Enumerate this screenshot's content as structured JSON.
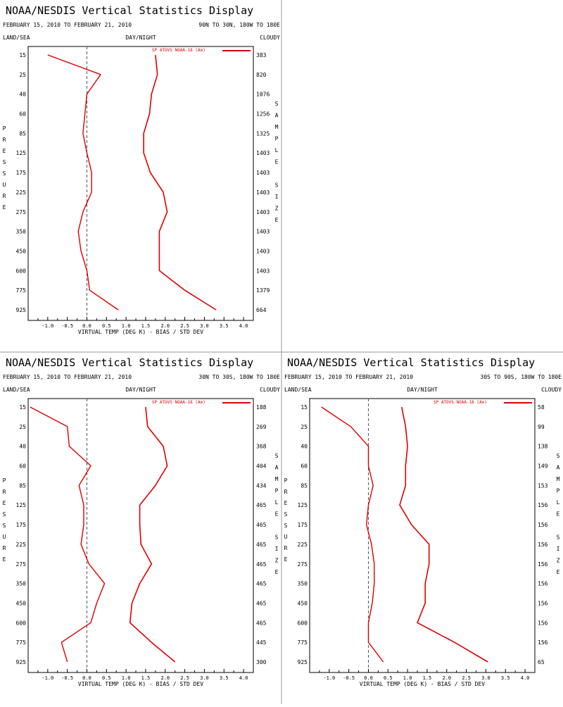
{
  "colors": {
    "series": "#dd0000",
    "frame": "#000000",
    "divider": "#999999",
    "zero_line": "#555555"
  },
  "chart_data": [
    {
      "type": "line",
      "title": "NOAA/NESDIS Vertical Statistics Display",
      "date_range": "FEBRUARY 15, 2010 TO FEBRUARY 21, 2010",
      "region": "90N TO 30N, 180W TO 180E",
      "left_header": "LAND/SEA",
      "center_header": "DAY/NIGHT",
      "right_header": "CLOUDY",
      "legend": "SP ATOVS NOAA-18 (A⊕)",
      "xlabel": "VIRTUAL TEMP (DEG K) - BIAS / STD DEV",
      "ylabel": "PRESSURE",
      "right_axis_label": "SAMPLE SIZE",
      "xlim": [
        -1.5,
        4.25
      ],
      "x_ticks": [
        "-1.0",
        "-0.5",
        "0.0",
        "0.5",
        "1.0",
        "1.5",
        "2.0",
        "2.5",
        "3.0",
        "3.5",
        "4.0"
      ],
      "pressure_levels": [
        "15",
        "25",
        "40",
        "60",
        "85",
        "125",
        "175",
        "225",
        "275",
        "350",
        "450",
        "600",
        "775",
        "925"
      ],
      "sample_size": [
        "383",
        "820",
        "1076",
        "1256",
        "1325",
        "1403",
        "1403",
        "1403",
        "1403",
        "1403",
        "1403",
        "1403",
        "1379",
        "664"
      ],
      "series": [
        {
          "role": "bias",
          "values": [
            -1.0,
            0.35,
            0.0,
            -0.05,
            -0.1,
            0.0,
            0.12,
            0.12,
            -0.1,
            -0.22,
            -0.15,
            0.0,
            0.07,
            0.8
          ]
        },
        {
          "role": "std_dev",
          "values": [
            1.75,
            1.8,
            1.65,
            1.6,
            1.45,
            1.45,
            1.62,
            1.95,
            2.05,
            1.85,
            1.85,
            1.85,
            2.5,
            3.3
          ]
        }
      ]
    },
    {
      "type": "line",
      "title": "NOAA/NESDIS Vertical Statistics Display",
      "date_range": "FEBRUARY 15, 2010 TO FEBRUARY 21, 2010",
      "region": "30N TO 30S, 180W TO 180E",
      "left_header": "LAND/SEA",
      "center_header": "DAY/NIGHT",
      "right_header": "CLOUDY",
      "legend": "SP ATOVS NOAA-18 (A⊕)",
      "xlabel": "VIRTUAL TEMP (DEG K) - BIAS / STD DEV",
      "ylabel": "PRESSURE",
      "right_axis_label": "SAMPLE SIZE",
      "xlim": [
        -1.5,
        4.25
      ],
      "x_ticks": [
        "-1.0",
        "-0.5",
        "0.0",
        "0.5",
        "1.0",
        "1.5",
        "2.0",
        "2.5",
        "3.0",
        "3.5",
        "4.0"
      ],
      "pressure_levels": [
        "15",
        "25",
        "40",
        "60",
        "85",
        "125",
        "175",
        "225",
        "275",
        "350",
        "450",
        "600",
        "775",
        "925"
      ],
      "sample_size": [
        "188",
        "269",
        "368",
        "404",
        "434",
        "465",
        "465",
        "465",
        "465",
        "465",
        "465",
        "465",
        "445",
        "300"
      ],
      "series": [
        {
          "role": "bias",
          "values": [
            -1.45,
            -0.5,
            -0.45,
            0.1,
            -0.2,
            -0.08,
            -0.08,
            -0.15,
            0.05,
            0.45,
            0.25,
            0.1,
            -0.65,
            -0.5
          ]
        },
        {
          "role": "std_dev",
          "values": [
            1.5,
            1.55,
            1.95,
            2.05,
            1.75,
            1.35,
            1.35,
            1.38,
            1.65,
            1.35,
            1.15,
            1.1,
            1.65,
            2.25
          ]
        }
      ]
    },
    {
      "type": "line",
      "title": "NOAA/NESDIS Vertical Statistics Display",
      "date_range": "FEBRUARY 15, 2010 TO FEBRUARY 21, 2010",
      "region": "30S TO 90S, 180W TO 180E",
      "left_header": "LAND/SEA",
      "center_header": "DAY/NIGHT",
      "right_header": "CLOUDY",
      "legend": "SP ATOVS NOAA-18 (A⊕)",
      "xlabel": "VIRTUAL TEMP (DEG K) - BIAS / STD DEV",
      "ylabel": "PRESSURE",
      "right_axis_label": "SAMPLE SIZE",
      "xlim": [
        -1.5,
        4.25
      ],
      "x_ticks": [
        "-1.0",
        "-0.5",
        "0.0",
        "0.5",
        "1.0",
        "1.5",
        "2.0",
        "2.5",
        "3.0",
        "3.5",
        "4.0"
      ],
      "pressure_levels": [
        "15",
        "25",
        "40",
        "60",
        "85",
        "125",
        "175",
        "225",
        "275",
        "350",
        "450",
        "600",
        "775",
        "925"
      ],
      "sample_size": [
        "58",
        "99",
        "138",
        "149",
        "153",
        "156",
        "156",
        "156",
        "156",
        "156",
        "156",
        "156",
        "156",
        "65"
      ],
      "series": [
        {
          "role": "bias",
          "values": [
            -1.2,
            -0.45,
            0.0,
            0.0,
            0.12,
            0.0,
            -0.05,
            0.08,
            0.15,
            0.15,
            0.1,
            0.0,
            0.0,
            0.38
          ]
        },
        {
          "role": "std_dev",
          "values": [
            0.85,
            0.95,
            1.0,
            0.95,
            0.95,
            0.8,
            1.1,
            1.55,
            1.55,
            1.45,
            1.45,
            1.25,
            2.2,
            3.05
          ]
        }
      ]
    }
  ]
}
